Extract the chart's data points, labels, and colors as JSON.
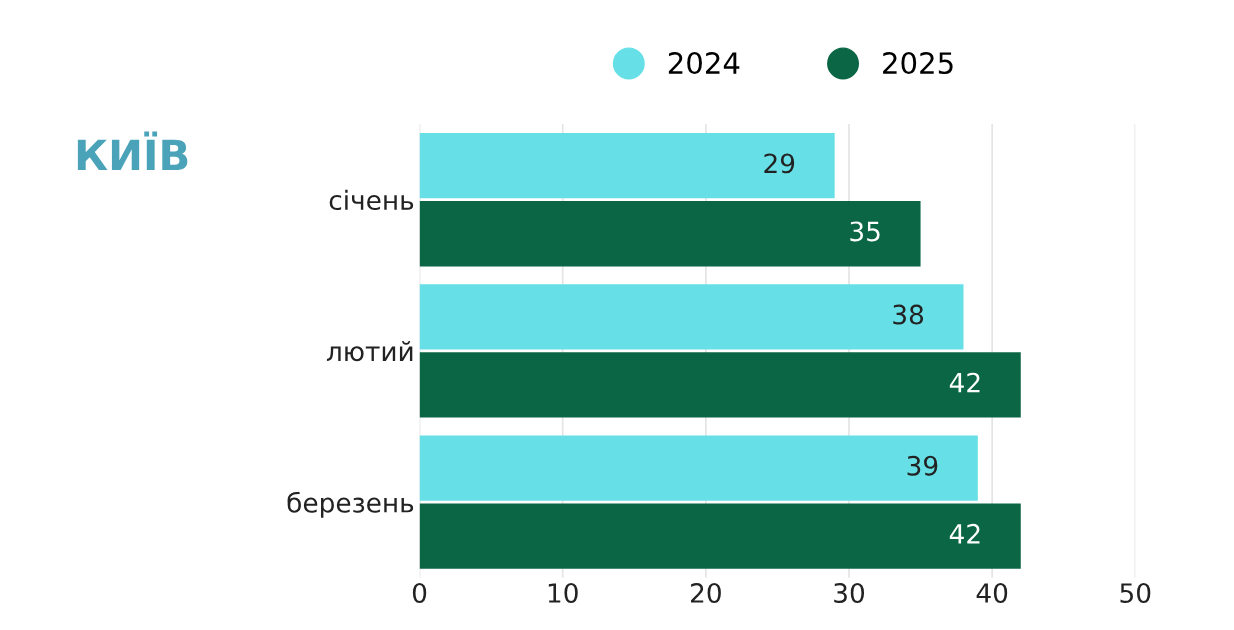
{
  "chart_data": {
    "type": "bar",
    "orientation": "horizontal",
    "title": "КИЇВ",
    "categories": [
      "січень",
      "лютий",
      "березень"
    ],
    "series": [
      {
        "name": "2024",
        "color": "#66e0e6",
        "values": [
          29,
          38,
          39
        ]
      },
      {
        "name": "2025",
        "color": "#0b6646",
        "values": [
          35,
          42,
          42
        ]
      }
    ],
    "xlim": [
      0,
      50
    ],
    "xticks": [
      0,
      10,
      20,
      30,
      40,
      50
    ],
    "grid": "x",
    "legend": "top",
    "data_labels": true
  }
}
